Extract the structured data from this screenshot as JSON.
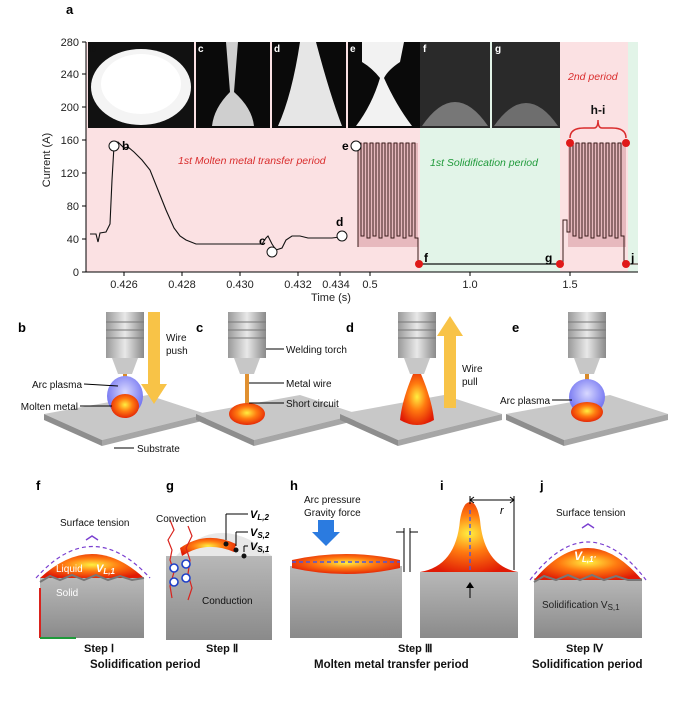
{
  "figure": {
    "panel_a": "a",
    "y_axis_label": "Current (A)",
    "x_axis_label": "Time (s)",
    "y_ticks": [
      "0",
      "40",
      "80",
      "120",
      "160",
      "200",
      "240",
      "280"
    ],
    "x_ticks_left": [
      "0.426",
      "0.428",
      "0.430",
      "0.432",
      "0.434"
    ],
    "x_ticks_right": [
      "0.5",
      "1.0",
      "1.5"
    ],
    "inset_letters": [
      "b",
      "c",
      "d",
      "e",
      "f",
      "g"
    ],
    "region_1": "1st Molten metal transfer period",
    "region_2": "1st Solidification period",
    "region_3": "2nd period",
    "bracket_label": "h-i",
    "point_labels": {
      "b": "b",
      "c": "c",
      "d": "d",
      "e": "e",
      "f": "f",
      "g": "g",
      "j": "j"
    },
    "row2_panels": [
      "b",
      "c",
      "d",
      "e"
    ],
    "row2_annotations": {
      "wire_push": [
        "Wire",
        "push"
      ],
      "wire_pull": [
        "Wire",
        "pull"
      ],
      "arc_plasma": "Arc plasma",
      "molten_metal": "Molten metal",
      "substrate": "Substrate",
      "welding_torch": "Welding torch",
      "metal_wire": "Metal wire",
      "short_circuit": "Short circuit",
      "arc_plasma_e": "Arc plasma"
    },
    "row3_panels": [
      "f",
      "g",
      "h",
      "i",
      "j"
    ],
    "row3_annotations": {
      "surface_tension_f": "Surface tension",
      "liquid": "Liquid",
      "v_l1": "V",
      "v_l1_sub": "L,1",
      "solid": "Solid",
      "convection": "Convection",
      "conduction": "Conduction",
      "v_l2": "V",
      "v_l2_sub": "L,2",
      "v_s2": "V",
      "v_s2_sub": "S,2",
      "v_s1": "V",
      "v_s1_sub": "S,1",
      "arc_pressure": "Arc pressure",
      "gravity_force": "Gravity force",
      "r_label": "r",
      "surface_tension_j": "Surface tension",
      "v_l1p": "V",
      "v_l1p_sub": "L,1'",
      "solidification_v": "Solidification V",
      "solidification_v_sub": "S,1"
    },
    "steps": [
      "Step Ⅰ",
      "Step Ⅱ",
      "Step Ⅲ",
      "Step Ⅳ"
    ],
    "periods": [
      "Solidification period",
      "Molten metal transfer period",
      "Solidification period"
    ]
  }
}
